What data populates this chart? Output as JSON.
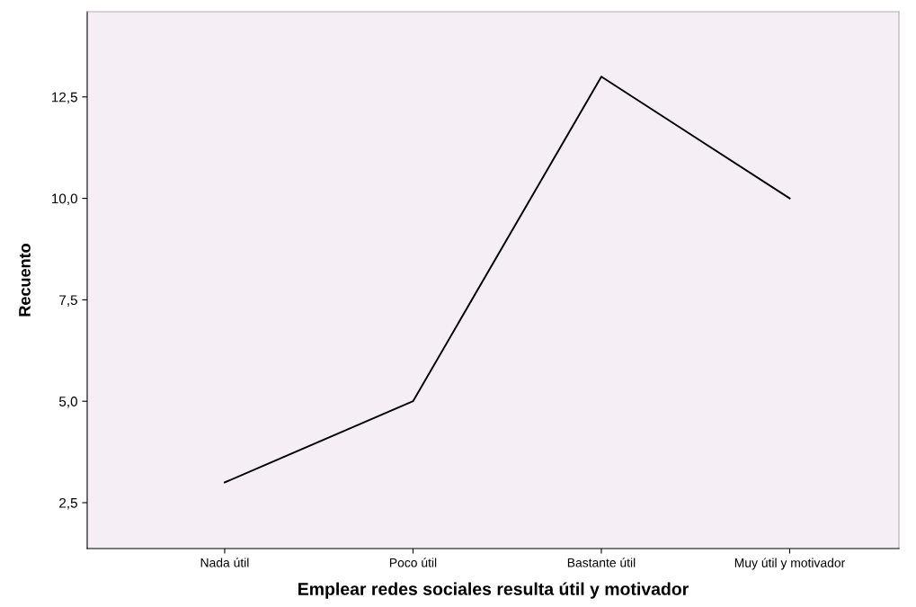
{
  "chart_data": {
    "type": "line",
    "xlabel": "Emplear redes sociales resulta útil y motivador",
    "ylabel": "Recuento",
    "categories": [
      "Nada útil",
      "Poco útil",
      "Bastante útil",
      "Muy útil y motivador"
    ],
    "series": [
      {
        "color": "#000000",
        "values": [
          3,
          5,
          13,
          10
        ]
      }
    ],
    "ylim": [
      1.37,
      14.6
    ],
    "yticks": [
      {
        "value": 2.5,
        "label": "2,5"
      },
      {
        "value": 5,
        "label": "5,0"
      },
      {
        "value": 7.5,
        "label": "7,5"
      },
      {
        "value": 10,
        "label": "10,0"
      },
      {
        "value": 12.5,
        "label": "12,5"
      }
    ],
    "grid": false,
    "legend": false,
    "marker": "none",
    "line_style": "solid"
  }
}
